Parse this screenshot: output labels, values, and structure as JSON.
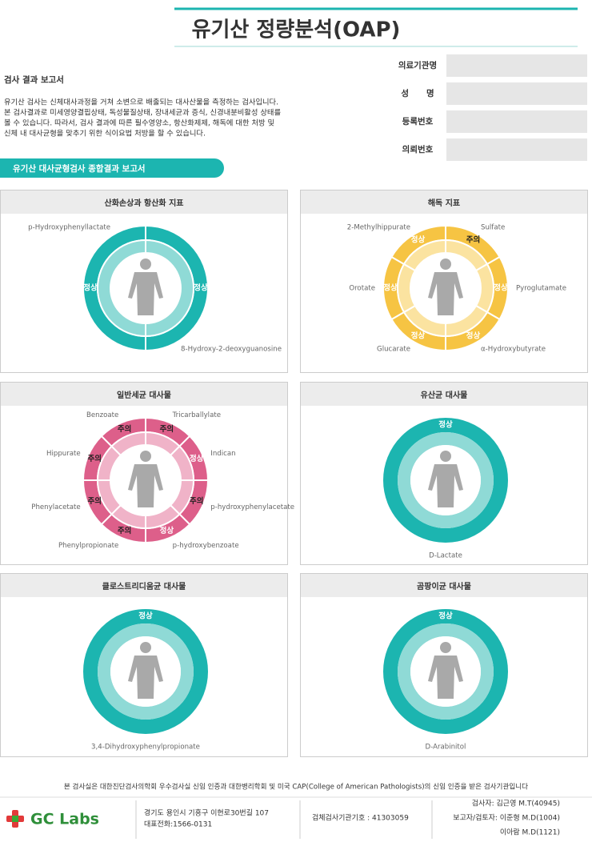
{
  "header": {
    "title": "유기산 정량분석(OAP)"
  },
  "info_fields": [
    "의료기관명",
    "성      명",
    "등록번호",
    "의뢰번호"
  ],
  "report": {
    "title": "검사 결과 보고서",
    "body": [
      "유기산 검사는 신체대사과정을 거쳐 소변으로 배출되는 대사산물을 측정하는 검사입니다.",
      "본 검사결과로 미세영양결핍상태, 독성물질상태, 장내세균과 증식, 신경내분비활성 상태를",
      "볼 수 있습니다. 따라서, 검사 결과에 따른 필수영양소, 항산화제제, 해독에 대한 처방 및",
      "신체 내 대사균형을 맞추기 위한 식이요법 처방을 할 수 있습니다."
    ]
  },
  "section_title": "유기산 대사균형검사 종합결과 보고서",
  "panels": [
    {
      "title": "산화손상과 항산화 지표",
      "color": "#1cb5b0",
      "light": "#8fdad6",
      "segments": [
        {
          "label": "8-Hydroxy-2-deoxyguanosine",
          "status": "정상"
        },
        {
          "label": "p-Hydroxyphenyllactate",
          "status": "정상"
        }
      ]
    },
    {
      "title": "해독 지표",
      "color": "#f6c443",
      "light": "#fbe3a0",
      "segments": [
        {
          "label": "Sulfate",
          "status": "주의"
        },
        {
          "label": "Pyroglutamate",
          "status": "정상"
        },
        {
          "label": "α-Hydroxybutyrate",
          "status": "정상"
        },
        {
          "label": "Glucarate",
          "status": "정상"
        },
        {
          "label": "Orotate",
          "status": "정상"
        },
        {
          "label": "2-Methylhippurate",
          "status": "정상"
        }
      ]
    },
    {
      "title": "일반세균 대사물",
      "color": "#dd5f8a",
      "light": "#f0b3c8",
      "segments": [
        {
          "label": "Tricarballylate",
          "status": "주의"
        },
        {
          "label": "Indican",
          "status": "정상"
        },
        {
          "label": "p-hydroxyphenylacetate",
          "status": "주의"
        },
        {
          "label": "p-hydroxybenzoate",
          "status": "정상"
        },
        {
          "label": "Phenylpropionate",
          "status": "주의"
        },
        {
          "label": "Phenylacetate",
          "status": "주의"
        },
        {
          "label": "Hippurate",
          "status": "주의"
        },
        {
          "label": "Benzoate",
          "status": "주의"
        }
      ]
    },
    {
      "title": "유산균 대사물",
      "color": "#1cb5b0",
      "light": "#8fdad6",
      "segments": [
        {
          "label": "D-Lactate",
          "status": "정상"
        }
      ]
    },
    {
      "title": "클로스트리디움균 대사물",
      "color": "#1cb5b0",
      "light": "#8fdad6",
      "segments": [
        {
          "label": "3,4-Dihydroxyphenylpropionate",
          "status": "정상"
        }
      ]
    },
    {
      "title": "곰팡이균 대사물",
      "color": "#1cb5b0",
      "light": "#8fdad6",
      "segments": [
        {
          "label": "D-Arabinitol",
          "status": "정상"
        }
      ]
    }
  ],
  "footer": {
    "certification": "본 검사실은 대한진단검사의학회 우수검사실 신임 인증과 대한병리학회 및 미국 CAP(College of American Pathologists)의 신임 인증을 받은 검사기관입니다",
    "logo": "GC Labs",
    "address": [
      "경기도 용인시 기흥구 이현로30번길 107",
      "대표전화:1566-0131"
    ],
    "agency_code": "검체검사기관기호 : 41303059",
    "staff": [
      "검사자: 김근영 M.T(40945)",
      "보고자/검토자: 이준형 M.D(1004)",
      "이아람 M.D(1121)"
    ]
  }
}
